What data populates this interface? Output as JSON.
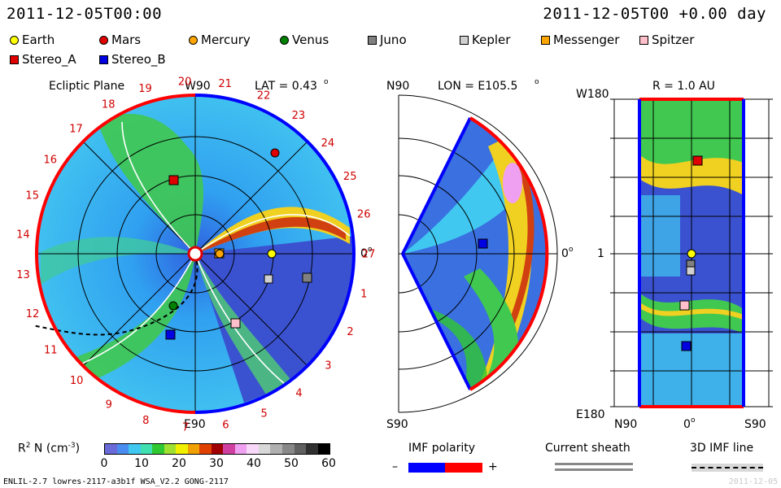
{
  "header": {
    "datetime": "2011-12-05T00:00",
    "offset": "2011-12-05T00 +0.00 day"
  },
  "legend": [
    {
      "name": "Earth",
      "color": "#ffff00",
      "shape": "circle"
    },
    {
      "name": "Mars",
      "color": "#e00000",
      "shape": "circle"
    },
    {
      "name": "Mercury",
      "color": "#ffa500",
      "shape": "circle"
    },
    {
      "name": "Venus",
      "color": "#008000",
      "shape": "circle"
    },
    {
      "name": "Juno",
      "color": "#808080",
      "shape": "square"
    },
    {
      "name": "Kepler",
      "color": "#d0d0d0",
      "shape": "square"
    },
    {
      "name": "Messenger",
      "color": "#ffa500",
      "shape": "square"
    },
    {
      "name": "Spitzer",
      "color": "#ffc0cb",
      "shape": "square"
    },
    {
      "name": "Stereo_A",
      "color": "#e00000",
      "shape": "square"
    },
    {
      "name": "Stereo_B",
      "color": "#0000e0",
      "shape": "square"
    }
  ],
  "ecliptic": {
    "title": "Ecliptic Plane",
    "top_label": "W90",
    "lat": "LAT = 0.43",
    "lat_deg": "o",
    "bottom_label": "E90",
    "right_label": "0",
    "right_deg": "o",
    "sector_numbers": [
      "20",
      "21",
      "22",
      "23",
      "24",
      "25",
      "26",
      "27",
      "1",
      "2",
      "3",
      "4",
      "5",
      "6",
      "7",
      "8",
      "9",
      "10",
      "11",
      "12",
      "13",
      "14",
      "15",
      "16",
      "17",
      "18",
      "19"
    ]
  },
  "meridional": {
    "top_label": "N90",
    "lon": "LON = E105.5",
    "lon_deg": "o",
    "bottom_label": "S90",
    "right_label": "0",
    "right_deg": "o"
  },
  "radial": {
    "title": "R = 1.0 AU",
    "top_left": "W180",
    "mid_left": "1",
    "bottom_left": "E180",
    "bottom_x_left": "N90",
    "bottom_x_mid": "0",
    "bottom_x_mid_deg": "o",
    "bottom_x_right": "S90"
  },
  "colorbar": {
    "label_main": "R",
    "label_sup": "2",
    "label_rest": " N (cm",
    "label_exp": "-3",
    "label_end": ")",
    "ticks": [
      "0",
      "10",
      "20",
      "30",
      "40",
      "50",
      "60"
    ],
    "colors": [
      "#6a6ad8",
      "#4a8cf0",
      "#40c8f0",
      "#40e0b0",
      "#30c830",
      "#a0e030",
      "#f0f000",
      "#f0a000",
      "#e04000",
      "#a00000",
      "#d040a0",
      "#f0a0f0",
      "#f8d8f8",
      "#d8d8d8",
      "#b0b0b0",
      "#888888",
      "#606060",
      "#303030",
      "#000000"
    ]
  },
  "imf_polarity": {
    "title": "IMF polarity",
    "minus": "–",
    "plus": "+",
    "neg_color": "#0000ff",
    "pos_color": "#ff0000"
  },
  "current_sheath": {
    "title": "Current sheath"
  },
  "imf_line": {
    "title": "3D IMF line"
  },
  "footer": {
    "model": "ENLIL-2.7 lowres-2117-a3b1f WSA_V2.2 GONG-2117",
    "right": "2011-12-05"
  }
}
